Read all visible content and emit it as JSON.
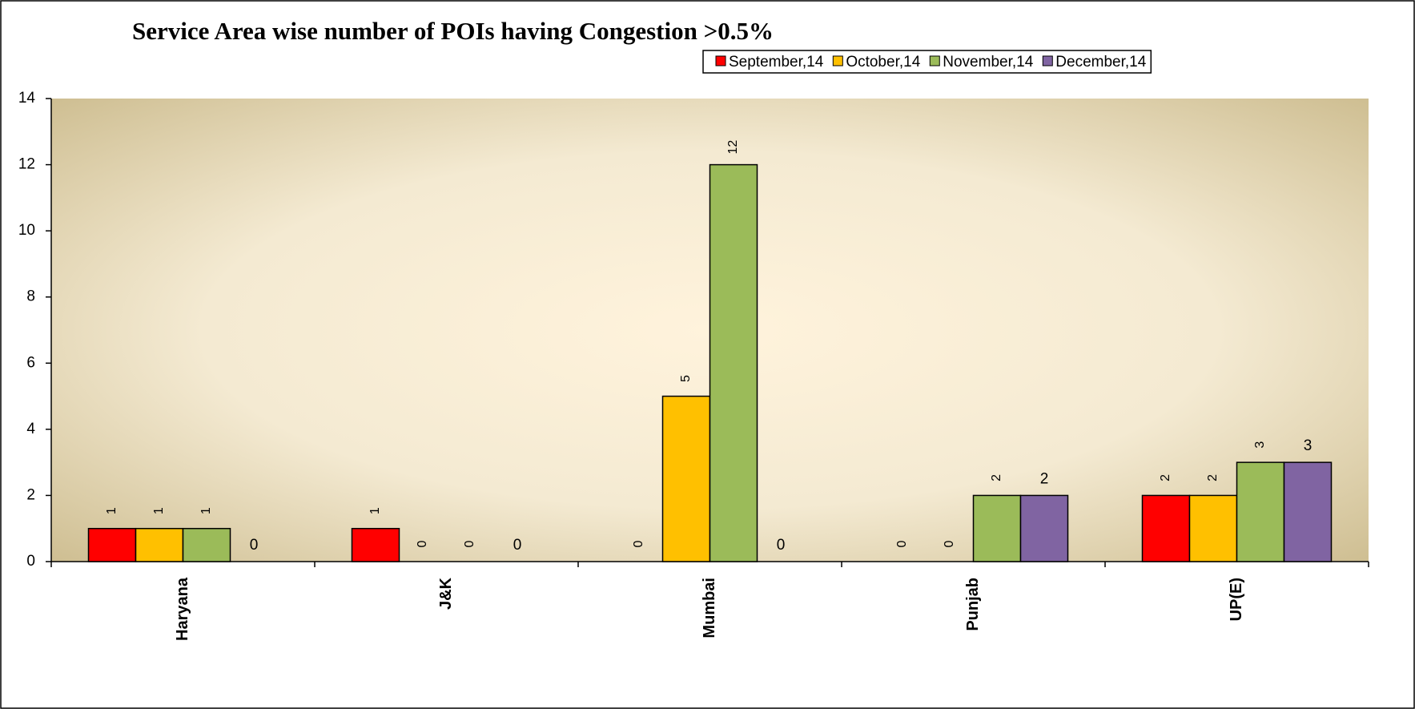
{
  "chart_data": {
    "type": "bar",
    "title": "Service Area wise  number of POIs having Congestion >0.5%",
    "categories": [
      "Haryana",
      "J&K",
      "Mumbai",
      "Punjab",
      "UP(E)"
    ],
    "series": [
      {
        "name": "September,14",
        "color": "#ff0000",
        "values": [
          1,
          1,
          0,
          0,
          2
        ]
      },
      {
        "name": "October,14",
        "color": "#ffc000",
        "values": [
          1,
          0,
          5,
          0,
          2
        ]
      },
      {
        "name": "November,14",
        "color": "#9bbb59",
        "values": [
          1,
          0,
          12,
          2,
          3
        ]
      },
      {
        "name": "December,14",
        "color": "#8064a2",
        "values": [
          0,
          0,
          0,
          2,
          3
        ]
      }
    ],
    "ylim": [
      0,
      14
    ],
    "yticks": [
      0,
      2,
      4,
      6,
      8,
      10,
      12,
      14
    ],
    "legend": "top-right"
  }
}
